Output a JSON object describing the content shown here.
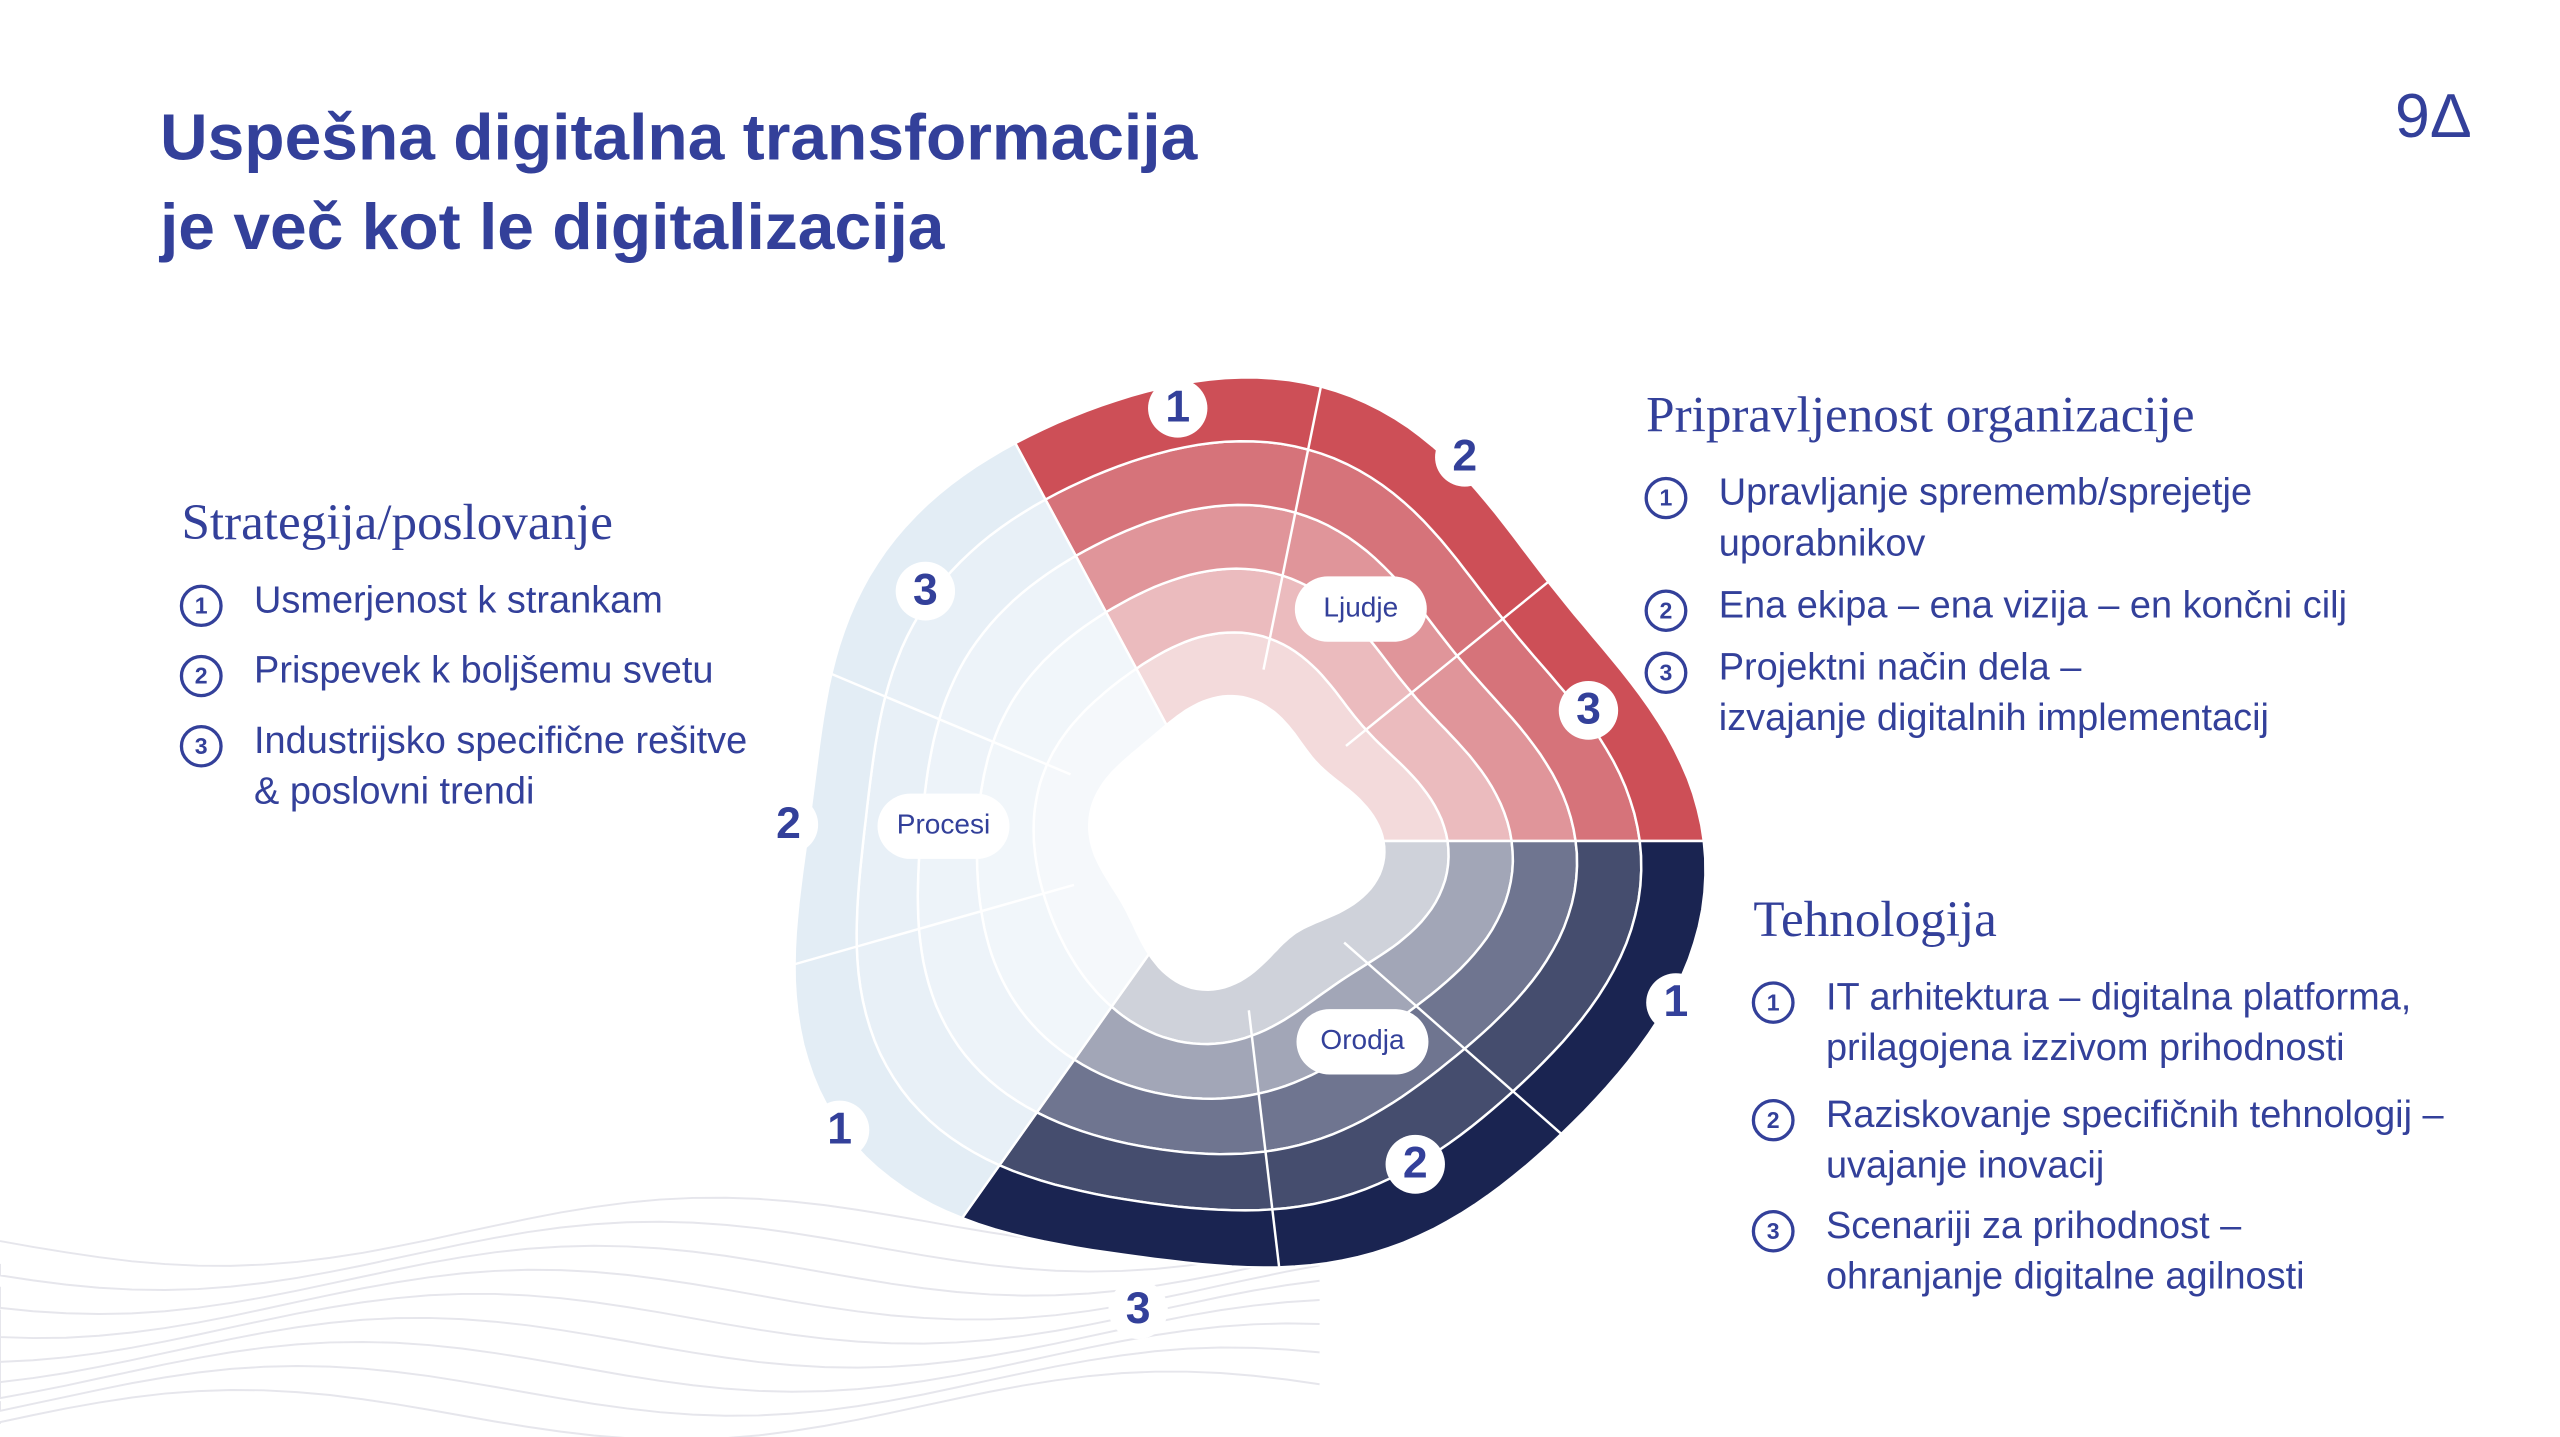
{
  "title": {
    "line1": "Uspešna digitalna transformacija",
    "line2": "je več kot le digitalizacija"
  },
  "logo": "9Δ",
  "sections": [
    {
      "heading": "Strategija/poslovanje",
      "items": [
        {
          "number": "1",
          "lines": [
            "Usmerjenost k strankam"
          ]
        },
        {
          "number": "2",
          "lines": [
            "Prispevek k boljšemu svetu"
          ]
        },
        {
          "number": "3",
          "lines": [
            "Industrijsko specifične rešitve",
            "& poslovni trendi"
          ]
        }
      ]
    },
    {
      "heading": "Pripravljenost organizacije",
      "items": [
        {
          "number": "1",
          "lines": [
            "Upravljanje sprememb/sprejetje",
            "uporabnikov"
          ]
        },
        {
          "number": "2",
          "lines": [
            "Ena ekipa – ena vizija – en končni cilj"
          ]
        },
        {
          "number": "3",
          "lines": [
            "Projektni način dela –",
            "izvajanje digitalnih implementacij"
          ]
        }
      ]
    },
    {
      "heading": "Tehnologija",
      "items": [
        {
          "number": "1",
          "lines": [
            "IT arhitektura – digitalna platforma,",
            "prilagojena izzivom prihodnosti"
          ]
        },
        {
          "number": "2",
          "lines": [
            "Raziskovanje specifičnih tehnologij –",
            "uvajanje inovacij"
          ]
        },
        {
          "number": "3",
          "lines": [
            "Scenariji za prihodnost –",
            "ohranjanje digitalne agilnosti"
          ]
        }
      ]
    }
  ],
  "diagram": {
    "segments": [
      {
        "label": "Ljudje",
        "numbers": [
          "1",
          "2",
          "3"
        ]
      },
      {
        "label": "Orodja",
        "numbers": [
          "1",
          "2",
          "3"
        ]
      },
      {
        "label": "Procesi",
        "numbers": [
          "1",
          "2",
          "3"
        ]
      }
    ]
  }
}
